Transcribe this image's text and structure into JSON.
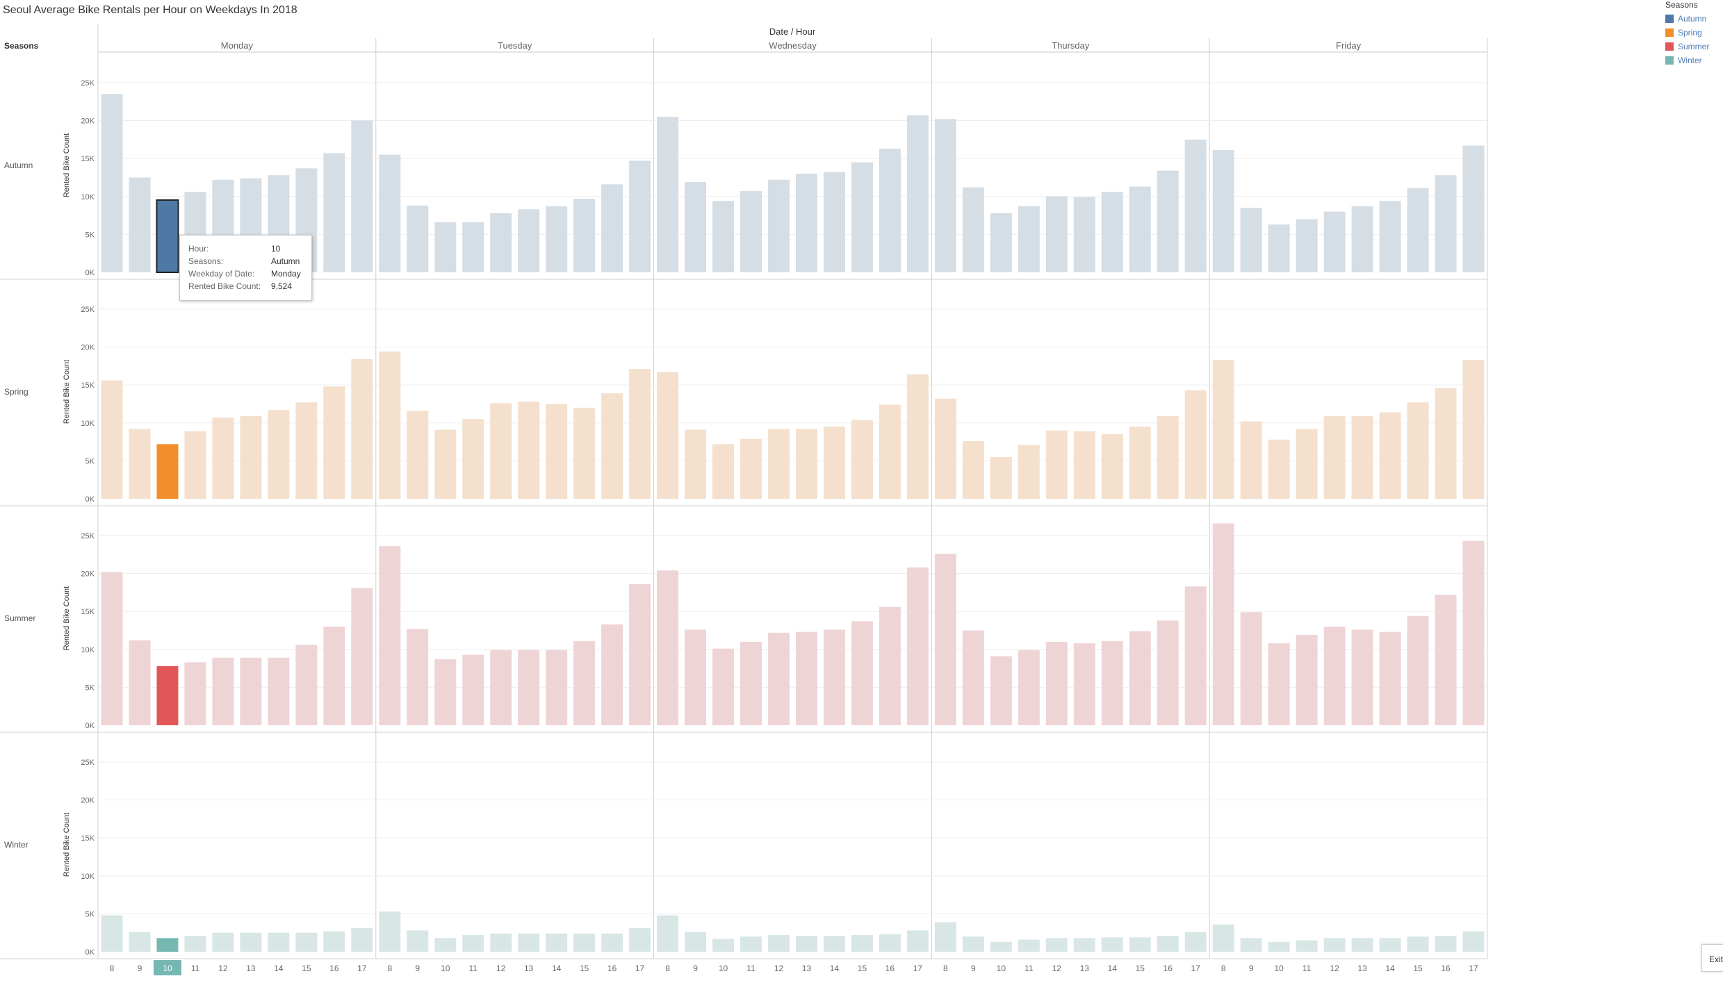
{
  "title": "Seoul Average Bike Rentals per Hour on Weekdays In 2018",
  "legend": {
    "title": "Seasons",
    "items": [
      {
        "label": "Autumn",
        "color": "#4e79a7"
      },
      {
        "label": "Spring",
        "color": "#f28e2b"
      },
      {
        "label": "Summer",
        "color": "#e15759"
      },
      {
        "label": "Winter",
        "color": "#76b7b2"
      }
    ]
  },
  "tooltip": {
    "rows": [
      {
        "key": "Hour:",
        "value": "10"
      },
      {
        "key": "Seasons:",
        "value": "Autumn"
      },
      {
        "key": "Weekday of Date:",
        "value": "Monday"
      },
      {
        "key": "Rented Bike Count:",
        "value": "9,524"
      }
    ]
  },
  "exit_button": "Exit",
  "chart_data": {
    "type": "bar",
    "column_header": "Date / Hour",
    "row_header": "Seasons",
    "days": [
      "Monday",
      "Tuesday",
      "Wednesday",
      "Thursday",
      "Friday"
    ],
    "hours": [
      "8",
      "9",
      "10",
      "11",
      "12",
      "13",
      "14",
      "15",
      "16",
      "17"
    ],
    "ylabel": "Rented Bike Count",
    "ylim": [
      0,
      26000
    ],
    "yticks": [
      0,
      5000,
      10000,
      15000,
      20000,
      25000
    ],
    "ytick_labels": [
      "0K",
      "5K",
      "10K",
      "15K",
      "20K",
      "25K"
    ],
    "highlight": {
      "day": "Monday",
      "hour": "10"
    },
    "seasons": [
      {
        "name": "Autumn",
        "color": "#4e79a7",
        "light": "#d5dde5",
        "values": [
          [
            23500,
            12500,
            9524,
            10600,
            12200,
            12400,
            12800,
            13700,
            15700,
            20000
          ],
          [
            15500,
            8800,
            6600,
            6600,
            7800,
            8300,
            8700,
            9700,
            11600,
            14700
          ],
          [
            20500,
            11900,
            9400,
            10700,
            12200,
            13000,
            13200,
            14500,
            16300,
            20700
          ],
          [
            20200,
            11200,
            7800,
            8700,
            10000,
            9900,
            10600,
            11300,
            13400,
            17500
          ],
          [
            16100,
            8500,
            6300,
            7000,
            8000,
            8700,
            9400,
            11100,
            12800,
            16700
          ]
        ]
      },
      {
        "name": "Spring",
        "color": "#f28e2b",
        "light": "#f4e0cd",
        "values": [
          [
            15600,
            9200,
            7200,
            8900,
            10700,
            10900,
            11700,
            12700,
            14800,
            18400
          ],
          [
            19400,
            11600,
            9100,
            10500,
            12600,
            12800,
            12500,
            12000,
            13900,
            17100
          ],
          [
            16700,
            9100,
            7200,
            7900,
            9200,
            9200,
            9500,
            10400,
            12400,
            16400
          ],
          [
            13200,
            7600,
            5500,
            7100,
            9000,
            8900,
            8500,
            9500,
            10900,
            14300
          ],
          [
            18300,
            10200,
            7800,
            9200,
            10900,
            10900,
            11400,
            12700,
            14600,
            18300
          ]
        ]
      },
      {
        "name": "Summer",
        "color": "#e15759",
        "light": "#efd4d6",
        "values": [
          [
            20200,
            11200,
            7800,
            8300,
            8900,
            8900,
            8900,
            10600,
            13000,
            18100
          ],
          [
            23600,
            12700,
            8700,
            9300,
            9900,
            9900,
            9900,
            11100,
            13300,
            18600
          ],
          [
            20400,
            12600,
            10100,
            11000,
            12200,
            12300,
            12600,
            13700,
            15600,
            20800
          ],
          [
            22600,
            12500,
            9100,
            9900,
            11000,
            10800,
            11100,
            12400,
            13800,
            18300
          ],
          [
            26600,
            14900,
            10800,
            11900,
            13000,
            12600,
            12300,
            14400,
            17200,
            24300
          ]
        ]
      },
      {
        "name": "Winter",
        "color": "#76b7b2",
        "light": "#d8e7e6",
        "values": [
          [
            4800,
            2600,
            1800,
            2100,
            2500,
            2500,
            2500,
            2500,
            2700,
            3100
          ],
          [
            5300,
            2800,
            1800,
            2200,
            2400,
            2400,
            2400,
            2400,
            2400,
            3100
          ],
          [
            4800,
            2600,
            1700,
            2000,
            2200,
            2100,
            2100,
            2200,
            2300,
            2800
          ],
          [
            3900,
            2000,
            1300,
            1600,
            1800,
            1800,
            1900,
            1900,
            2100,
            2600
          ],
          [
            3600,
            1800,
            1300,
            1500,
            1800,
            1800,
            1800,
            2000,
            2100,
            2700
          ]
        ]
      }
    ]
  }
}
